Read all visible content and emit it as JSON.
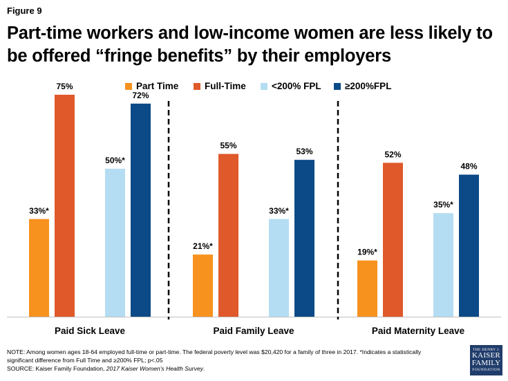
{
  "figure_label": "Figure 9",
  "title": "Part-time workers and low-income women are less likely to be offered “fringe benefits” by their employers",
  "colors": {
    "part_time": "#f7921e",
    "full_time": "#e0592a",
    "below_200": "#b4ddf3",
    "above_200": "#0b4a86"
  },
  "chart_data": {
    "type": "bar",
    "title": "Part-time workers and low-income women are less likely to be offered “fringe benefits” by their employers",
    "xlabel": "",
    "ylabel": "",
    "ylim": [
      0,
      100
    ],
    "grid": false,
    "legend_position": "top",
    "categories": [
      "Paid Sick Leave",
      "Paid Family Leave",
      "Paid Maternity Leave"
    ],
    "series": [
      {
        "name": "Part Time",
        "values": [
          33,
          21,
          19
        ],
        "labels": [
          "33%*",
          "21%*",
          "19%*"
        ]
      },
      {
        "name": "Full-Time",
        "values": [
          75,
          55,
          52
        ],
        "labels": [
          "75%",
          "55%",
          "52%"
        ]
      },
      {
        "name": "<200% FPL",
        "values": [
          50,
          33,
          35
        ],
        "labels": [
          "50%*",
          "33%*",
          "35%*"
        ]
      },
      {
        "name": "≥200%FPL",
        "values": [
          72,
          53,
          48
        ],
        "labels": [
          "72%",
          "53%",
          "48%"
        ]
      }
    ]
  },
  "note": {
    "line1": "NOTE: Among women ages 18-64 employed full-time or part-time. The federal poverty level was $20,420 for a family of three  in 2017. *Indicates a statistically",
    "line2": "significant difference from Full Time and ≥200% FPL; p<.05",
    "source_prefix": "SOURCE:  Kaiser Family Foundation, ",
    "source_title": "2017 Kaiser Women’s Health Survey",
    "source_suffix": "."
  },
  "logo": {
    "line1": "THE HENRY J.",
    "line2": "KAISER",
    "line3": "FAMILY",
    "line4": "FOUNDATION"
  }
}
